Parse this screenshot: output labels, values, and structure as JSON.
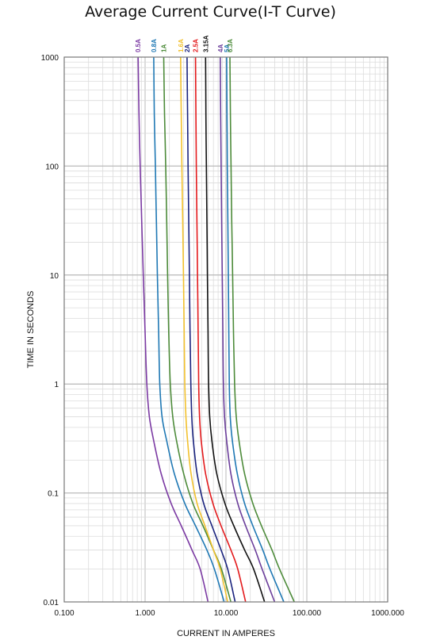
{
  "chart_data": {
    "type": "line",
    "title": "Average Current Curve(I-T Curve)",
    "xlabel": "CURRENT IN AMPERES",
    "ylabel": "TIME IN SECONDS",
    "x_scale": "log",
    "y_scale": "log",
    "xlim": [
      0.1,
      1000
    ],
    "ylim": [
      0.01,
      1000
    ],
    "grid": true,
    "x_ticks": [
      {
        "value": 0.1,
        "label": "0.100"
      },
      {
        "value": 1,
        "label": "1.000"
      },
      {
        "value": 10,
        "label": "10.000"
      },
      {
        "value": 100,
        "label": "100.000"
      },
      {
        "value": 1000,
        "label": "1000.000"
      }
    ],
    "y_ticks": [
      {
        "value": 0.01,
        "label": "0.01"
      },
      {
        "value": 0.1,
        "label": "0.1"
      },
      {
        "value": 1,
        "label": "1"
      },
      {
        "value": 10,
        "label": "10"
      },
      {
        "value": 100,
        "label": "100"
      },
      {
        "value": 1000,
        "label": "1000"
      }
    ],
    "series": [
      {
        "name": "0.5A",
        "color": "#7b3aa3",
        "points": [
          [
            0.82,
            1000
          ],
          [
            0.84,
            300
          ],
          [
            0.87,
            100
          ],
          [
            0.91,
            30
          ],
          [
            0.95,
            10
          ],
          [
            1.0,
            3
          ],
          [
            1.05,
            1
          ],
          [
            1.13,
            0.5
          ],
          [
            1.28,
            0.3
          ],
          [
            1.58,
            0.15
          ],
          [
            2.1,
            0.08
          ],
          [
            2.8,
            0.05
          ],
          [
            3.8,
            0.03
          ],
          [
            4.8,
            0.02
          ],
          [
            6.0,
            0.01
          ]
        ]
      },
      {
        "name": "0.8A",
        "color": "#1f78b4",
        "points": [
          [
            1.28,
            1000
          ],
          [
            1.3,
            300
          ],
          [
            1.34,
            100
          ],
          [
            1.38,
            30
          ],
          [
            1.42,
            10
          ],
          [
            1.47,
            3
          ],
          [
            1.52,
            1
          ],
          [
            1.62,
            0.5
          ],
          [
            1.85,
            0.3
          ],
          [
            2.3,
            0.15
          ],
          [
            3.1,
            0.08
          ],
          [
            4.2,
            0.05
          ],
          [
            5.8,
            0.03
          ],
          [
            7.2,
            0.02
          ],
          [
            9.5,
            0.01
          ]
        ]
      },
      {
        "name": "1A",
        "color": "#4d8b3a",
        "points": [
          [
            1.7,
            1000
          ],
          [
            1.74,
            300
          ],
          [
            1.8,
            100
          ],
          [
            1.85,
            30
          ],
          [
            1.9,
            10
          ],
          [
            1.96,
            3
          ],
          [
            2.05,
            1
          ],
          [
            2.2,
            0.5
          ],
          [
            2.45,
            0.3
          ],
          [
            3.0,
            0.15
          ],
          [
            3.9,
            0.08
          ],
          [
            5.2,
            0.05
          ],
          [
            7.0,
            0.03
          ],
          [
            8.8,
            0.02
          ],
          [
            11.5,
            0.01
          ]
        ]
      },
      {
        "name": "1.6A",
        "color": "#f2c12e",
        "points": [
          [
            2.75,
            1000
          ],
          [
            2.8,
            300
          ],
          [
            2.85,
            100
          ],
          [
            2.92,
            30
          ],
          [
            2.98,
            10
          ],
          [
            3.04,
            3
          ],
          [
            3.1,
            1
          ],
          [
            3.2,
            0.5
          ],
          [
            3.35,
            0.3
          ],
          [
            3.7,
            0.15
          ],
          [
            4.4,
            0.08
          ],
          [
            5.5,
            0.05
          ],
          [
            7.0,
            0.03
          ],
          [
            8.5,
            0.02
          ],
          [
            10.5,
            0.01
          ]
        ]
      },
      {
        "name": "2A",
        "color": "#1a237e",
        "points": [
          [
            3.3,
            1000
          ],
          [
            3.35,
            300
          ],
          [
            3.4,
            100
          ],
          [
            3.47,
            30
          ],
          [
            3.53,
            10
          ],
          [
            3.6,
            3
          ],
          [
            3.68,
            1
          ],
          [
            3.78,
            0.5
          ],
          [
            3.95,
            0.3
          ],
          [
            4.4,
            0.15
          ],
          [
            5.3,
            0.08
          ],
          [
            6.7,
            0.05
          ],
          [
            8.7,
            0.03
          ],
          [
            10.5,
            0.02
          ],
          [
            13.0,
            0.01
          ]
        ]
      },
      {
        "name": "2.5A",
        "color": "#e31a1c",
        "points": [
          [
            4.2,
            1000
          ],
          [
            4.25,
            300
          ],
          [
            4.3,
            100
          ],
          [
            4.38,
            30
          ],
          [
            4.45,
            10
          ],
          [
            4.53,
            3
          ],
          [
            4.6,
            1
          ],
          [
            4.72,
            0.5
          ],
          [
            4.95,
            0.3
          ],
          [
            5.6,
            0.15
          ],
          [
            6.9,
            0.08
          ],
          [
            8.7,
            0.05
          ],
          [
            11.5,
            0.03
          ],
          [
            14.0,
            0.02
          ],
          [
            17.5,
            0.01
          ]
        ]
      },
      {
        "name": "3.15A",
        "color": "#111111",
        "points": [
          [
            5.6,
            1000
          ],
          [
            5.65,
            300
          ],
          [
            5.72,
            100
          ],
          [
            5.82,
            30
          ],
          [
            5.9,
            10
          ],
          [
            6.0,
            3
          ],
          [
            6.1,
            1
          ],
          [
            6.3,
            0.5
          ],
          [
            6.7,
            0.3
          ],
          [
            7.7,
            0.15
          ],
          [
            9.7,
            0.08
          ],
          [
            12.5,
            0.05
          ],
          [
            17.0,
            0.03
          ],
          [
            22.0,
            0.02
          ],
          [
            30.0,
            0.01
          ]
        ]
      },
      {
        "name": "4A",
        "color": "#6a3d9a",
        "points": [
          [
            8.5,
            1000
          ],
          [
            8.6,
            300
          ],
          [
            8.72,
            100
          ],
          [
            8.85,
            30
          ],
          [
            9.0,
            10
          ],
          [
            9.15,
            3
          ],
          [
            9.3,
            1
          ],
          [
            9.6,
            0.5
          ],
          [
            10.2,
            0.3
          ],
          [
            11.5,
            0.15
          ],
          [
            14.0,
            0.08
          ],
          [
            17.5,
            0.05
          ],
          [
            23.0,
            0.03
          ],
          [
            28.0,
            0.02
          ],
          [
            40.0,
            0.01
          ]
        ]
      },
      {
        "name": "5A",
        "color": "#1f78b4",
        "points": [
          [
            10.2,
            1000
          ],
          [
            10.3,
            300
          ],
          [
            10.4,
            100
          ],
          [
            10.55,
            30
          ],
          [
            10.7,
            10
          ],
          [
            10.85,
            3
          ],
          [
            11.0,
            1
          ],
          [
            11.3,
            0.5
          ],
          [
            12.0,
            0.3
          ],
          [
            13.8,
            0.15
          ],
          [
            17.0,
            0.08
          ],
          [
            21.5,
            0.05
          ],
          [
            28.5,
            0.03
          ],
          [
            35.0,
            0.02
          ],
          [
            52.0,
            0.01
          ]
        ]
      },
      {
        "name": "6.3A",
        "color": "#4d8b3a",
        "points": [
          [
            11.2,
            1000
          ],
          [
            11.35,
            300
          ],
          [
            11.55,
            100
          ],
          [
            11.8,
            30
          ],
          [
            12.1,
            10
          ],
          [
            12.4,
            3
          ],
          [
            12.8,
            1
          ],
          [
            13.4,
            0.5
          ],
          [
            14.5,
            0.3
          ],
          [
            17.0,
            0.15
          ],
          [
            21.5,
            0.08
          ],
          [
            27.5,
            0.05
          ],
          [
            37.0,
            0.03
          ],
          [
            46.0,
            0.02
          ],
          [
            70.0,
            0.01
          ]
        ]
      }
    ]
  }
}
